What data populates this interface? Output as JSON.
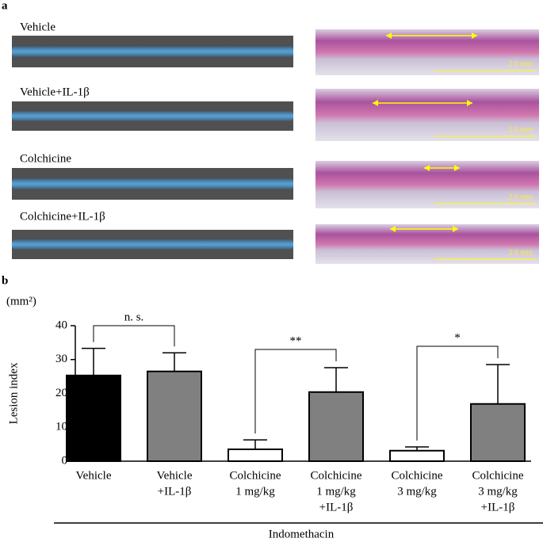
{
  "panel_a": {
    "label": "a",
    "rows": [
      "Vehicle",
      "Vehicle+IL-1β",
      "Colchicine",
      "Colchicine+IL-1β"
    ],
    "scale_bar": "2.0 mm"
  },
  "chart_data": {
    "type": "bar",
    "panel_label": "b",
    "y_unit": "(mm²)",
    "y_label": "Lesion index",
    "x_group_label": "Indomethacin",
    "categories": [
      [
        "Vehicle"
      ],
      [
        "Vehicle",
        "+IL-1β"
      ],
      [
        "Colchicine",
        "1 mg/kg"
      ],
      [
        "Colchicine",
        "1 mg/kg",
        "+IL-1β"
      ],
      [
        "Colchicine",
        "3 mg/kg"
      ],
      [
        "Colchicine",
        "3 mg/kg",
        "+IL-1β"
      ]
    ],
    "values": [
      25.3,
      26.5,
      3.5,
      20.4,
      3.1,
      16.9
    ],
    "errors": [
      8.0,
      5.5,
      2.8,
      7.2,
      1.1,
      11.6
    ],
    "colors": [
      "#000000",
      "#808080",
      "#ffffff",
      "#808080",
      "#ffffff",
      "#808080"
    ],
    "ylim": [
      0,
      40
    ],
    "yticks": [
      0,
      10,
      20,
      30,
      40
    ],
    "comparisons": [
      {
        "groups": [
          0,
          1
        ],
        "label": "n. s."
      },
      {
        "groups": [
          2,
          3
        ],
        "label": "**"
      },
      {
        "groups": [
          4,
          5
        ],
        "label": "*"
      }
    ]
  }
}
